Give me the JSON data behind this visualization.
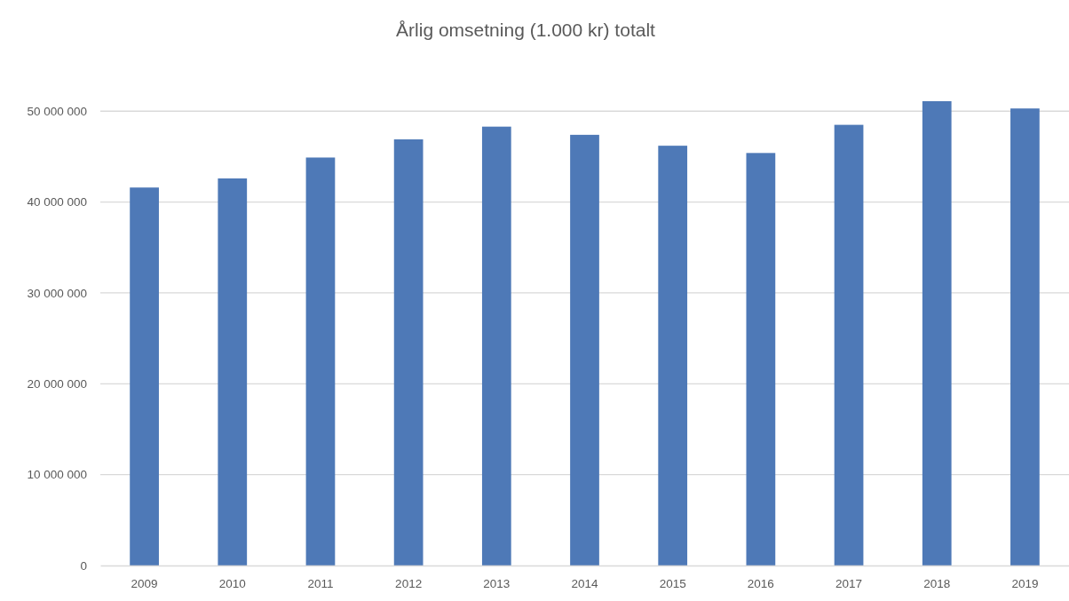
{
  "chart_data": {
    "type": "bar",
    "title": "Årlig omsetning (1.000 kr) totalt",
    "categories": [
      "2009",
      "2010",
      "2011",
      "2012",
      "2013",
      "2014",
      "2015",
      "2016",
      "2017",
      "2018",
      "2019"
    ],
    "values": [
      41600000,
      42600000,
      44900000,
      46900000,
      48300000,
      47400000,
      46200000,
      45400000,
      48500000,
      51100000,
      50300000
    ],
    "color": "#4e79b7",
    "ylim": [
      0,
      51100000
    ],
    "yticks": [
      0,
      {
        "value": 10000000,
        "label": "10 000 000"
      },
      {
        "value": 20000000,
        "label": "20 000 000"
      },
      {
        "value": 30000000,
        "label": "30 000 000"
      },
      {
        "value": 40000000,
        "label": "40 000 000"
      },
      {
        "value": 50000000,
        "label": "50 000 000"
      }
    ],
    "grid": "y"
  }
}
